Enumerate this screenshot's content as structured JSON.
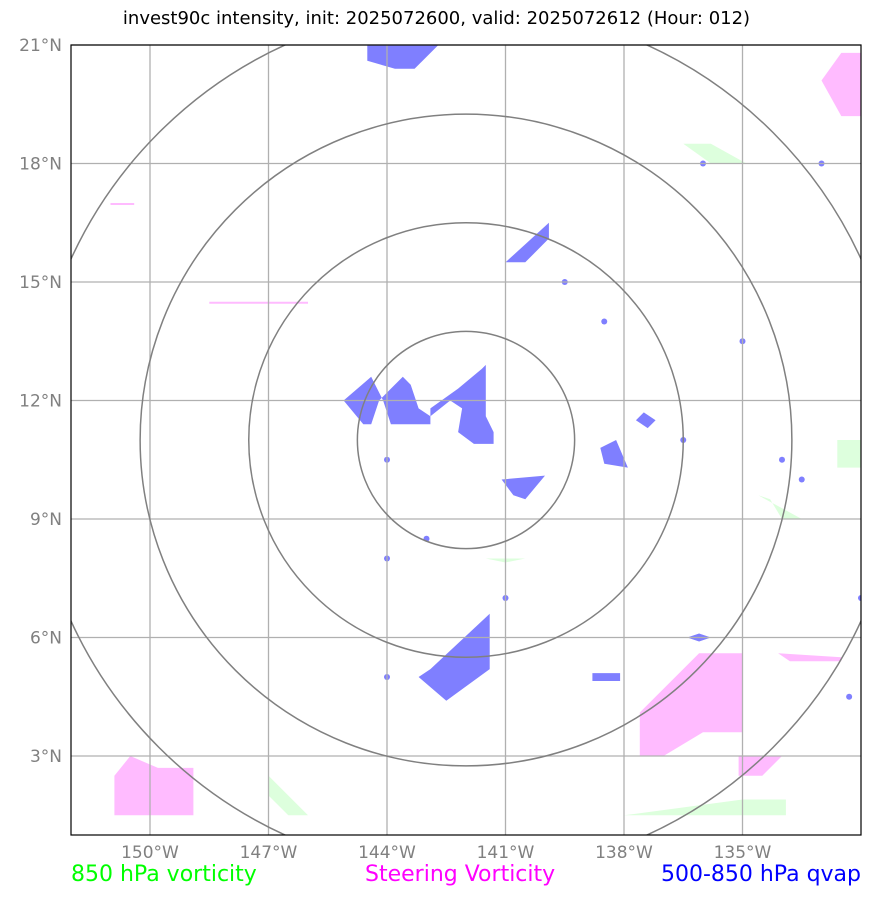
{
  "title": "invest90c intensity, init: 2025072600, valid: 2025072612 (Hour: 012)",
  "legend": [
    {
      "label": "850 hPa vorticity",
      "color": "#00ff00"
    },
    {
      "label": "Steering Vorticity",
      "color": "#ff00ff"
    },
    {
      "label": "500-850 hPa qvap",
      "color": "#0000ff"
    }
  ],
  "chart_data": {
    "type": "map",
    "lon_range": [
      -152,
      -132
    ],
    "lat_range": [
      1,
      21
    ],
    "x_ticks": [
      {
        "value": -150,
        "label": "150°W"
      },
      {
        "value": -147,
        "label": "147°W"
      },
      {
        "value": -144,
        "label": "144°W"
      },
      {
        "value": -141,
        "label": "141°W"
      },
      {
        "value": -138,
        "label": "138°W"
      },
      {
        "value": -135,
        "label": "135°W"
      }
    ],
    "y_ticks": [
      {
        "value": 3,
        "label": "3°N"
      },
      {
        "value": 6,
        "label": "6°N"
      },
      {
        "value": 9,
        "label": "9°N"
      },
      {
        "value": 12,
        "label": "12°N"
      },
      {
        "value": 15,
        "label": "15°N"
      },
      {
        "value": 18,
        "label": "18°N"
      },
      {
        "value": 21,
        "label": "21°N"
      }
    ],
    "grid": true,
    "range_rings": {
      "center": [
        -142,
        11
      ],
      "radii_deg": [
        2.75,
        5.5,
        8.25,
        11
      ]
    },
    "fill_colors": {
      "850 hPa vorticity": "#ddffdd",
      "Steering Vorticity": "#ffbbff",
      "500-850 hPa qvap": "#7f7fff"
    },
    "regions": [
      {
        "layer": "500-850 hPa qvap",
        "points": [
          [
            -144.5,
            20.6
          ],
          [
            -144.5,
            21
          ],
          [
            -142.7,
            21
          ],
          [
            -143.3,
            20.4
          ],
          [
            -143.8,
            20.4
          ]
        ]
      },
      {
        "layer": "500-850 hPa qvap",
        "points": [
          [
            -141.0,
            15.5
          ],
          [
            -139.9,
            16.5
          ],
          [
            -139.9,
            16.1
          ],
          [
            -140.5,
            15.5
          ]
        ]
      },
      {
        "layer": "500-850 hPa qvap",
        "points": [
          [
            -145.1,
            12.0
          ],
          [
            -144.4,
            12.6
          ],
          [
            -144.1,
            12.0
          ],
          [
            -143.9,
            11.4
          ],
          [
            -142.9,
            11.4
          ],
          [
            -142.9,
            11.8
          ],
          [
            -142.2,
            12.3
          ],
          [
            -141.6,
            12.8
          ],
          [
            -141.5,
            12.9
          ],
          [
            -141.5,
            11.6
          ],
          [
            -141.3,
            11.2
          ],
          [
            -141.3,
            10.9
          ],
          [
            -141.8,
            10.9
          ],
          [
            -142.2,
            11.2
          ],
          [
            -142.1,
            11.8
          ],
          [
            -142.4,
            12.0
          ],
          [
            -142.9,
            11.6
          ],
          [
            -143.2,
            11.8
          ],
          [
            -143.4,
            12.4
          ],
          [
            -143.6,
            12.6
          ],
          [
            -143.9,
            12.3
          ],
          [
            -144.2,
            12.0
          ],
          [
            -144.4,
            11.4
          ],
          [
            -144.6,
            11.4
          ]
        ]
      },
      {
        "layer": "500-850 hPa qvap",
        "points": [
          [
            -141.1,
            10.0
          ],
          [
            -140.0,
            10.1
          ],
          [
            -140.5,
            9.5
          ],
          [
            -140.8,
            9.6
          ]
        ]
      },
      {
        "layer": "500-850 hPa qvap",
        "points": [
          [
            -138.2,
            11.0
          ],
          [
            -137.9,
            10.3
          ],
          [
            -138.5,
            10.4
          ],
          [
            -138.6,
            10.8
          ]
        ]
      },
      {
        "layer": "500-850 hPa qvap",
        "points": [
          [
            -137.5,
            11.7
          ],
          [
            -137.2,
            11.5
          ],
          [
            -137.4,
            11.3
          ],
          [
            -137.7,
            11.5
          ]
        ]
      },
      {
        "layer": "500-850 hPa qvap",
        "points": [
          [
            -142.9,
            5.2
          ],
          [
            -141.4,
            6.6
          ],
          [
            -141.4,
            5.2
          ],
          [
            -142.5,
            4.4
          ],
          [
            -143.2,
            5.0
          ]
        ]
      },
      {
        "layer": "500-850 hPa qvap",
        "points": [
          [
            -136.1,
            6.1
          ],
          [
            -135.8,
            6.0
          ],
          [
            -136.1,
            5.9
          ],
          [
            -136.4,
            6.0
          ]
        ]
      },
      {
        "layer": "500-850 hPa qvap",
        "points": [
          [
            -138.8,
            5.1
          ],
          [
            -138.1,
            5.1
          ],
          [
            -138.1,
            4.9
          ],
          [
            -138.8,
            4.9
          ]
        ]
      },
      {
        "layer": "Steering Vorticity",
        "points": [
          [
            -133.0,
            20.1
          ],
          [
            -132.5,
            20.8
          ],
          [
            -132.0,
            20.8
          ],
          [
            -132.0,
            19.2
          ],
          [
            -132.5,
            19.2
          ]
        ]
      },
      {
        "layer": "Steering Vorticity",
        "points": [
          [
            -150.9,
            2.5
          ],
          [
            -150.5,
            3.0
          ],
          [
            -149.8,
            2.7
          ],
          [
            -148.9,
            2.7
          ],
          [
            -148.9,
            1.5
          ],
          [
            -150.9,
            1.5
          ]
        ]
      },
      {
        "layer": "Steering Vorticity",
        "points": [
          [
            -137.6,
            4.1
          ],
          [
            -136.1,
            5.6
          ],
          [
            -135.0,
            5.6
          ],
          [
            -135.0,
            3.6
          ],
          [
            -136.0,
            3.6
          ],
          [
            -137.0,
            3.0
          ],
          [
            -137.6,
            3.0
          ]
        ]
      },
      {
        "layer": "Steering Vorticity",
        "points": [
          [
            -135.1,
            3.0
          ],
          [
            -134.0,
            3.0
          ],
          [
            -134.5,
            2.5
          ],
          [
            -135.1,
            2.5
          ]
        ]
      },
      {
        "layer": "Steering Vorticity",
        "points": [
          [
            -134.1,
            5.6
          ],
          [
            -132.5,
            5.5
          ],
          [
            -132.5,
            5.4
          ],
          [
            -133.8,
            5.4
          ]
        ]
      },
      {
        "layer": "Steering Vorticity",
        "points": [
          [
            -148.5,
            14.5
          ],
          [
            -146.0,
            14.5
          ],
          [
            -146.0,
            14.45
          ],
          [
            -148.5,
            14.45
          ]
        ]
      },
      {
        "layer": "Steering Vorticity",
        "points": [
          [
            -151.0,
            17.0
          ],
          [
            -150.4,
            17.0
          ],
          [
            -150.4,
            16.95
          ],
          [
            -151.0,
            16.95
          ]
        ]
      },
      {
        "layer": "850 hPa vorticity",
        "points": [
          [
            -136.5,
            18.5
          ],
          [
            -135.8,
            18.0
          ],
          [
            -134.9,
            18.0
          ],
          [
            -135.8,
            18.5
          ]
        ]
      },
      {
        "layer": "850 hPa vorticity",
        "points": [
          [
            -134.6,
            9.6
          ],
          [
            -133.5,
            9.0
          ],
          [
            -134.0,
            9.0
          ],
          [
            -134.3,
            9.5
          ]
        ]
      },
      {
        "layer": "850 hPa vorticity",
        "points": [
          [
            -132.6,
            11.0
          ],
          [
            -132.0,
            11.0
          ],
          [
            -132.0,
            10.3
          ],
          [
            -132.6,
            10.3
          ]
        ]
      },
      {
        "layer": "850 hPa vorticity",
        "points": [
          [
            -147.0,
            2.5
          ],
          [
            -146.0,
            1.5
          ],
          [
            -146.5,
            1.5
          ],
          [
            -147.0,
            2.0
          ]
        ]
      },
      {
        "layer": "850 hPa vorticity",
        "points": [
          [
            -138.0,
            1.5
          ],
          [
            -135.0,
            1.9
          ],
          [
            -133.9,
            1.9
          ],
          [
            -133.9,
            1.5
          ]
        ]
      },
      {
        "layer": "850 hPa vorticity",
        "points": [
          [
            -141.5,
            8.0
          ],
          [
            -140.5,
            8.0
          ],
          [
            -141.0,
            7.9
          ]
        ]
      }
    ],
    "dots": [
      {
        "layer": "500-850 hPa qvap",
        "lon": -144.0,
        "lat": 10.5
      },
      {
        "layer": "500-850 hPa qvap",
        "lon": -144.0,
        "lat": 8.0
      },
      {
        "layer": "500-850 hPa qvap",
        "lon": -143.0,
        "lat": 8.5
      },
      {
        "layer": "500-850 hPa qvap",
        "lon": -141.0,
        "lat": 7.0
      },
      {
        "layer": "500-850 hPa qvap",
        "lon": -139.5,
        "lat": 15.0
      },
      {
        "layer": "500-850 hPa qvap",
        "lon": -138.5,
        "lat": 14.0
      },
      {
        "layer": "500-850 hPa qvap",
        "lon": -135.0,
        "lat": 13.5
      },
      {
        "layer": "500-850 hPa qvap",
        "lon": -136.5,
        "lat": 11.0
      },
      {
        "layer": "500-850 hPa qvap",
        "lon": -134.0,
        "lat": 10.5
      },
      {
        "layer": "500-850 hPa qvap",
        "lon": -133.5,
        "lat": 10.0
      },
      {
        "layer": "500-850 hPa qvap",
        "lon": -132.0,
        "lat": 7.0
      },
      {
        "layer": "500-850 hPa qvap",
        "lon": -133.0,
        "lat": 18.0
      },
      {
        "layer": "500-850 hPa qvap",
        "lon": -136.0,
        "lat": 18.0
      },
      {
        "layer": "500-850 hPa qvap",
        "lon": -144.0,
        "lat": 5.0
      },
      {
        "layer": "500-850 hPa qvap",
        "lon": -132.3,
        "lat": 4.5
      }
    ]
  }
}
